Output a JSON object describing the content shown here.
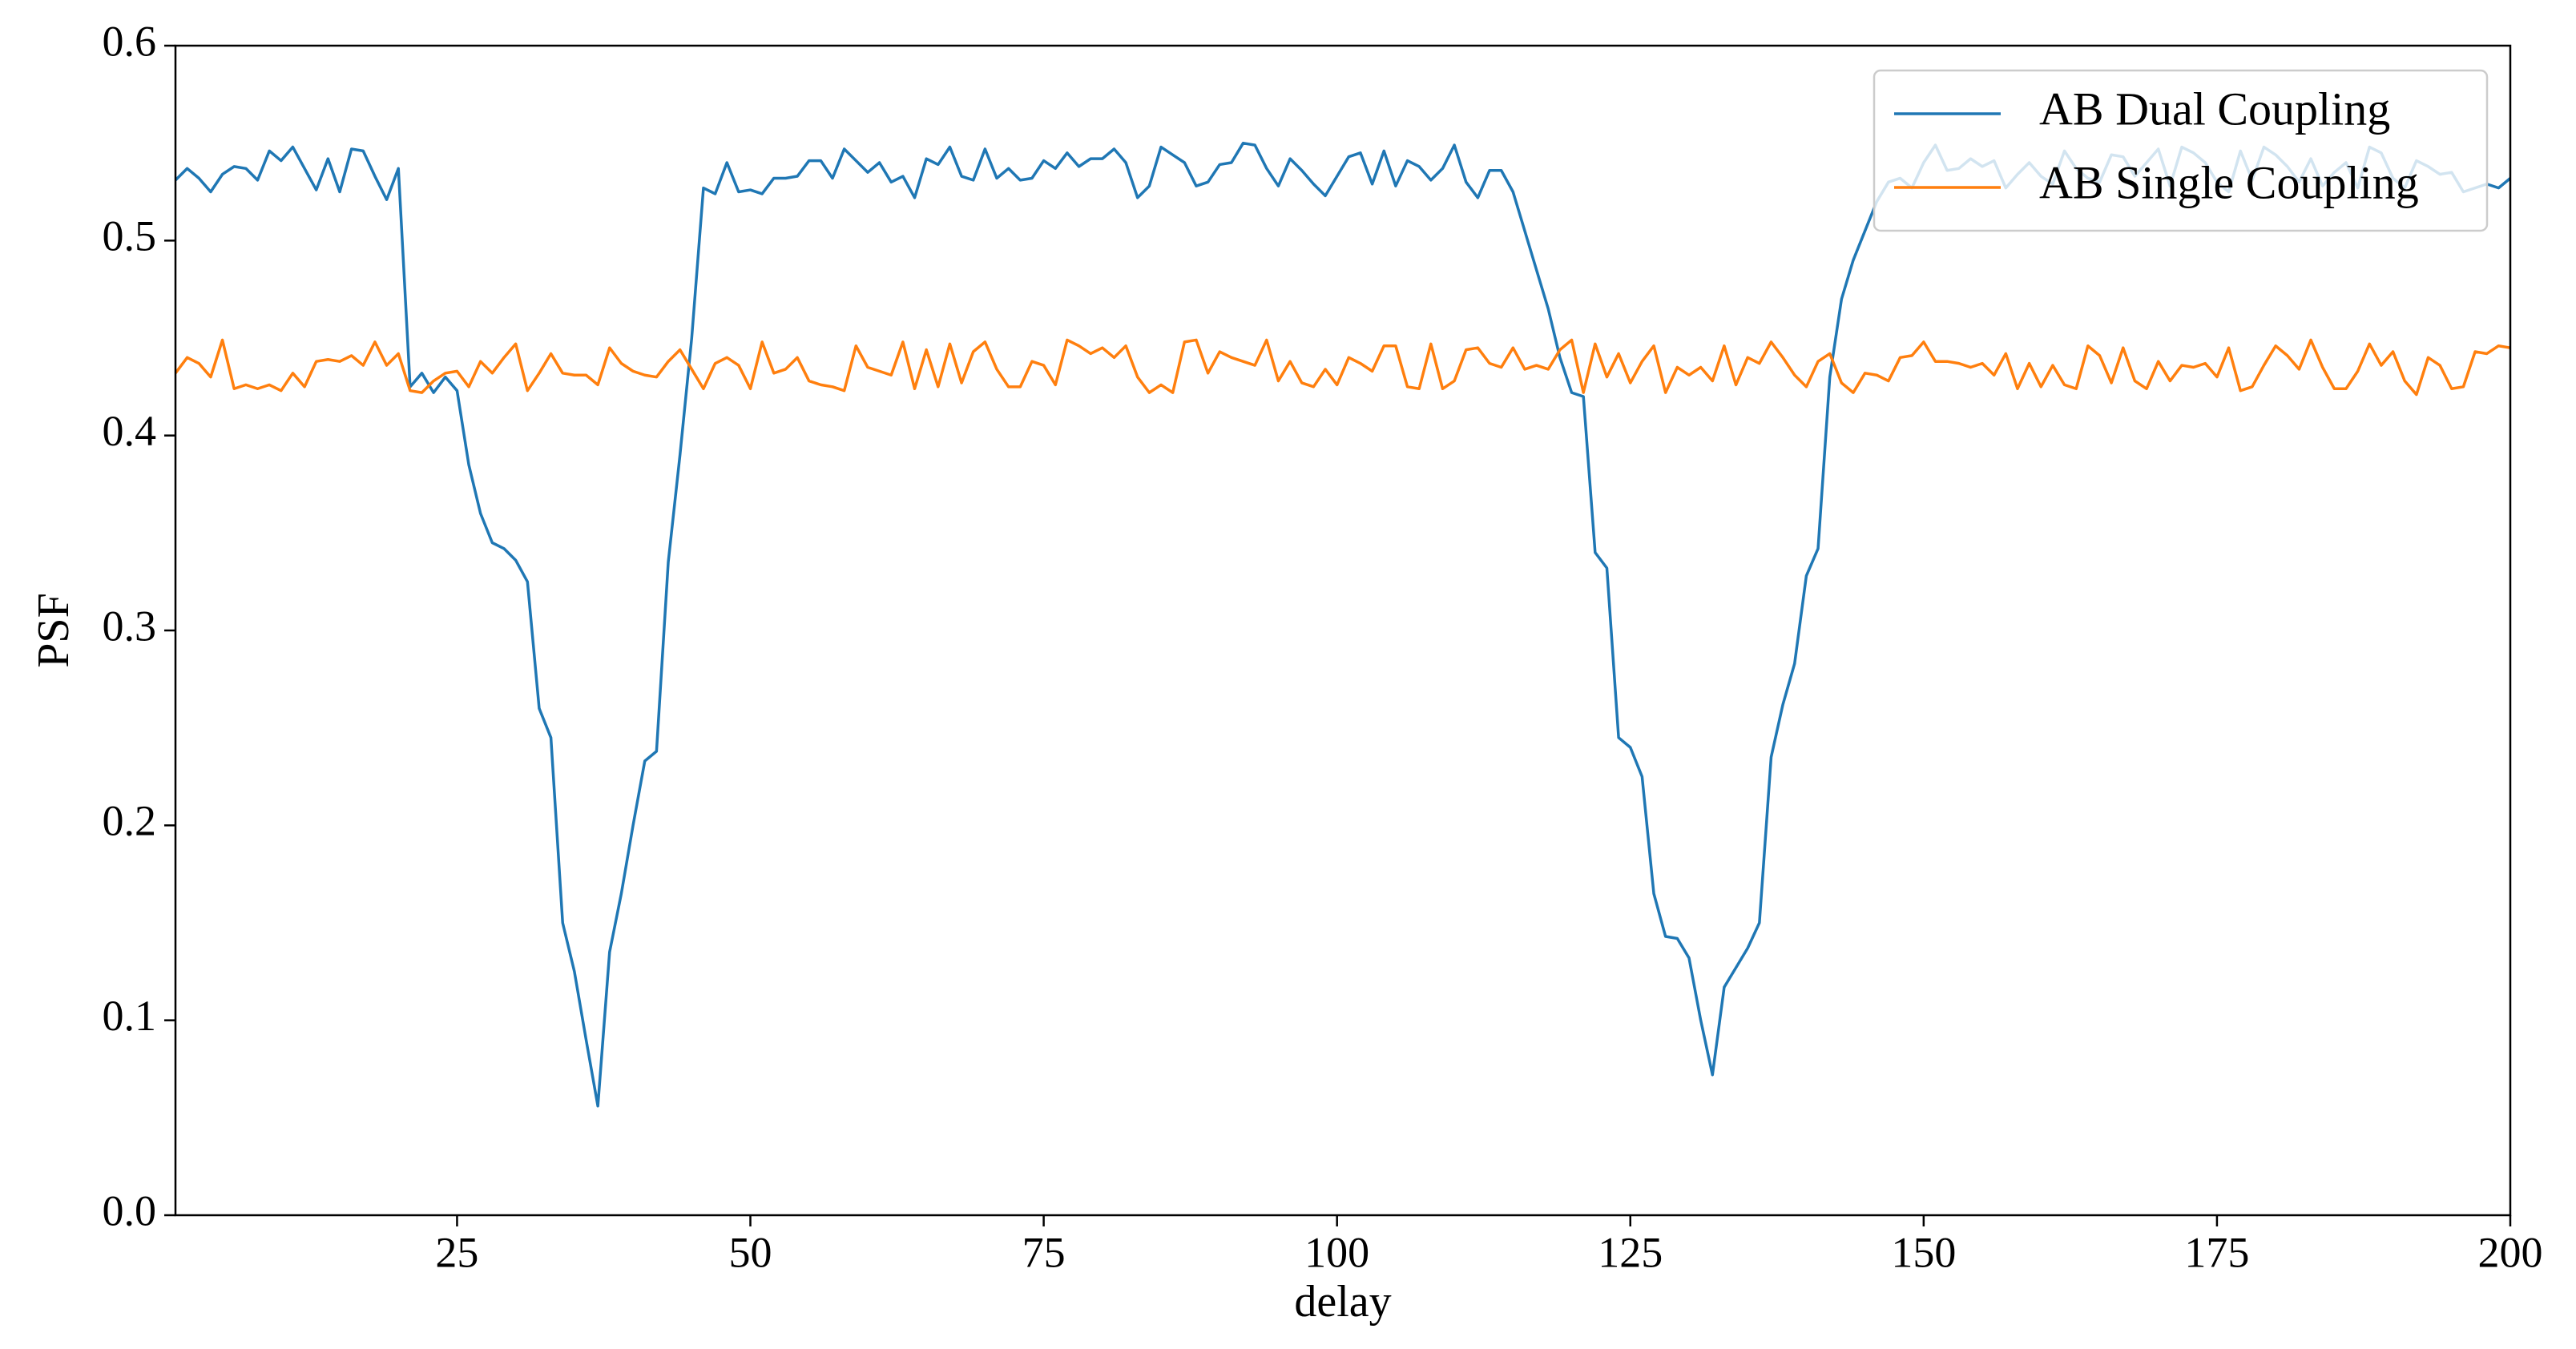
{
  "chart_data": {
    "type": "line",
    "xlabel": "delay",
    "ylabel": "PSF",
    "x": [
      1,
      2,
      3,
      4,
      5,
      6,
      7,
      8,
      9,
      10,
      11,
      12,
      13,
      14,
      15,
      16,
      17,
      18,
      19,
      20,
      21,
      22,
      23,
      24,
      25,
      26,
      27,
      28,
      29,
      30,
      31,
      32,
      33,
      34,
      35,
      36,
      37,
      38,
      39,
      40,
      41,
      42,
      43,
      44,
      45,
      46,
      47,
      48,
      49,
      50,
      51,
      52,
      53,
      54,
      55,
      56,
      57,
      58,
      59,
      60,
      61,
      62,
      63,
      64,
      65,
      66,
      67,
      68,
      69,
      70,
      71,
      72,
      73,
      74,
      75,
      76,
      77,
      78,
      79,
      80,
      81,
      82,
      83,
      84,
      85,
      86,
      87,
      88,
      89,
      90,
      91,
      92,
      93,
      94,
      95,
      96,
      97,
      98,
      99,
      100,
      101,
      102,
      103,
      104,
      105,
      106,
      107,
      108,
      109,
      110,
      111,
      112,
      113,
      114,
      115,
      116,
      117,
      118,
      119,
      120,
      121,
      122,
      123,
      124,
      125,
      126,
      127,
      128,
      129,
      130,
      131,
      132,
      133,
      134,
      135,
      136,
      137,
      138,
      139,
      140,
      141,
      142,
      143,
      144,
      145,
      146,
      147,
      148,
      149,
      150,
      151,
      152,
      153,
      154,
      155,
      156,
      157,
      158,
      159,
      160,
      161,
      162,
      163,
      164,
      165,
      166,
      167,
      168,
      169,
      170,
      171,
      172,
      173,
      174,
      175,
      176,
      177,
      178,
      179,
      180,
      181,
      182,
      183,
      184,
      185,
      186,
      187,
      188,
      189,
      190,
      191,
      192,
      193,
      194,
      195,
      196,
      197,
      198,
      199,
      200
    ],
    "series": [
      {
        "name": "AB Dual Coupling",
        "color": "#1f77b4",
        "values": [
          0.531,
          0.537,
          0.532,
          0.525,
          0.534,
          0.538,
          0.537,
          0.531,
          0.546,
          0.541,
          0.548,
          0.537,
          0.526,
          0.542,
          0.525,
          0.547,
          0.546,
          0.533,
          0.521,
          0.537,
          0.425,
          0.432,
          0.422,
          0.43,
          0.423,
          0.385,
          0.36,
          0.345,
          0.342,
          0.336,
          0.325,
          0.26,
          0.245,
          0.15,
          0.125,
          0.09,
          0.056,
          0.135,
          0.165,
          0.2,
          0.233,
          0.238,
          0.335,
          0.39,
          0.45,
          0.527,
          0.524,
          0.54,
          0.525,
          0.526,
          0.524,
          0.532,
          0.532,
          0.533,
          0.541,
          0.541,
          0.532,
          0.547,
          0.541,
          0.535,
          0.54,
          0.53,
          0.533,
          0.522,
          0.542,
          0.539,
          0.548,
          0.533,
          0.531,
          0.547,
          0.532,
          0.537,
          0.531,
          0.532,
          0.541,
          0.537,
          0.545,
          0.538,
          0.542,
          0.542,
          0.547,
          0.54,
          0.522,
          0.528,
          0.548,
          0.544,
          0.54,
          0.528,
          0.53,
          0.539,
          0.54,
          0.55,
          0.549,
          0.537,
          0.528,
          0.542,
          0.536,
          0.529,
          0.523,
          0.533,
          0.543,
          0.545,
          0.529,
          0.546,
          0.528,
          0.541,
          0.538,
          0.531,
          0.537,
          0.549,
          0.53,
          0.522,
          0.536,
          0.536,
          0.525,
          0.505,
          0.485,
          0.465,
          0.44,
          0.422,
          0.42,
          0.34,
          0.332,
          0.245,
          0.24,
          0.225,
          0.165,
          0.143,
          0.142,
          0.132,
          0.1,
          0.072,
          0.117,
          0.127,
          0.137,
          0.15,
          0.235,
          0.262,
          0.283,
          0.328,
          0.342,
          0.43,
          0.47,
          0.49,
          0.505,
          0.52,
          0.53,
          0.532,
          0.527,
          0.54,
          0.549,
          0.536,
          0.537,
          0.542,
          0.538,
          0.541,
          0.527,
          0.534,
          0.54,
          0.533,
          0.529,
          0.546,
          0.537,
          0.532,
          0.53,
          0.544,
          0.543,
          0.533,
          0.54,
          0.547,
          0.528,
          0.548,
          0.545,
          0.54,
          0.53,
          0.525,
          0.546,
          0.531,
          0.548,
          0.544,
          0.538,
          0.53,
          0.542,
          0.528,
          0.535,
          0.54,
          0.527,
          0.548,
          0.545,
          0.532,
          0.527,
          0.541,
          0.538,
          0.534,
          0.535,
          0.525,
          0.527,
          0.529,
          0.527,
          0.532
        ]
      },
      {
        "name": "AB Single Coupling",
        "color": "#ff7f0e",
        "values": [
          0.432,
          0.44,
          0.437,
          0.43,
          0.449,
          0.424,
          0.426,
          0.424,
          0.426,
          0.423,
          0.432,
          0.425,
          0.438,
          0.439,
          0.438,
          0.441,
          0.436,
          0.448,
          0.436,
          0.442,
          0.423,
          0.422,
          0.428,
          0.432,
          0.433,
          0.425,
          0.438,
          0.432,
          0.44,
          0.447,
          0.423,
          0.432,
          0.442,
          0.432,
          0.431,
          0.431,
          0.426,
          0.445,
          0.437,
          0.433,
          0.431,
          0.43,
          0.438,
          0.444,
          0.434,
          0.424,
          0.437,
          0.44,
          0.436,
          0.424,
          0.448,
          0.432,
          0.434,
          0.44,
          0.428,
          0.426,
          0.425,
          0.423,
          0.446,
          0.435,
          0.433,
          0.431,
          0.448,
          0.424,
          0.444,
          0.425,
          0.447,
          0.427,
          0.443,
          0.448,
          0.434,
          0.425,
          0.425,
          0.438,
          0.436,
          0.426,
          0.449,
          0.446,
          0.442,
          0.445,
          0.44,
          0.446,
          0.43,
          0.422,
          0.426,
          0.422,
          0.448,
          0.449,
          0.432,
          0.443,
          0.44,
          0.438,
          0.436,
          0.449,
          0.428,
          0.438,
          0.427,
          0.425,
          0.434,
          0.426,
          0.44,
          0.437,
          0.433,
          0.446,
          0.446,
          0.425,
          0.424,
          0.447,
          0.424,
          0.428,
          0.444,
          0.445,
          0.437,
          0.435,
          0.445,
          0.434,
          0.436,
          0.434,
          0.444,
          0.449,
          0.422,
          0.447,
          0.43,
          0.442,
          0.427,
          0.438,
          0.446,
          0.422,
          0.435,
          0.431,
          0.435,
          0.428,
          0.446,
          0.426,
          0.44,
          0.437,
          0.448,
          0.44,
          0.431,
          0.425,
          0.438,
          0.442,
          0.427,
          0.422,
          0.432,
          0.431,
          0.428,
          0.44,
          0.441,
          0.448,
          0.438,
          0.438,
          0.437,
          0.435,
          0.437,
          0.431,
          0.442,
          0.424,
          0.437,
          0.425,
          0.436,
          0.426,
          0.424,
          0.446,
          0.441,
          0.427,
          0.445,
          0.428,
          0.424,
          0.438,
          0.428,
          0.436,
          0.435,
          0.437,
          0.43,
          0.445,
          0.423,
          0.425,
          0.436,
          0.446,
          0.441,
          0.434,
          0.449,
          0.435,
          0.424,
          0.424,
          0.433,
          0.447,
          0.436,
          0.443,
          0.428,
          0.421,
          0.44,
          0.436,
          0.424,
          0.425,
          0.443,
          0.442,
          0.446,
          0.445
        ]
      }
    ],
    "xlim": [
      1,
      200
    ],
    "xticks": [
      25,
      50,
      75,
      100,
      125,
      150,
      175,
      200
    ],
    "ylim": [
      0,
      0.6
    ],
    "yticks": [
      {
        "value": 0,
        "label": "0.0"
      },
      0.1,
      0.2,
      0.3,
      0.4,
      0.5,
      0.6
    ],
    "legend": "upper right"
  }
}
